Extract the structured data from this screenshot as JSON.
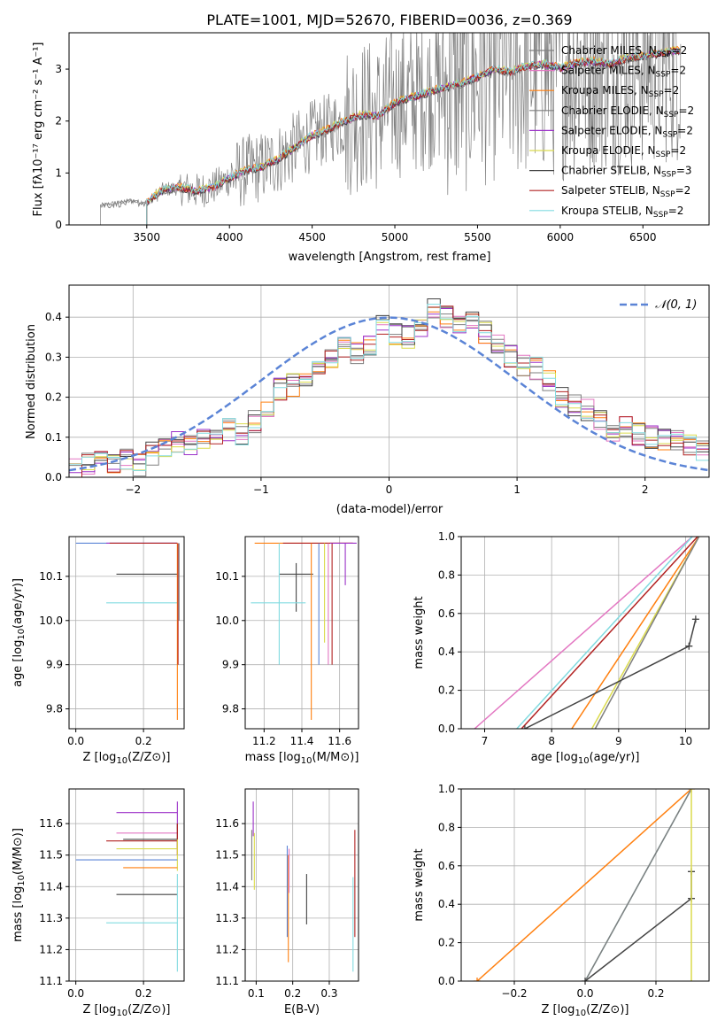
{
  "figure": {
    "title": "PLATE=1001, MJD=52670, FIBERID=0036, z=0.369"
  },
  "colors": {
    "chabrier_miles": "#808080",
    "salpeter_miles": "#e377c2",
    "kroupa_miles": "#ff7f0e",
    "chabrier_elodie": "#7f7f7f",
    "salpeter_elodie": "#9b30c8",
    "kroupa_elodie": "#dbdb4d",
    "chabrier_stelib": "#444444",
    "salpeter_stelib": "#b22222",
    "kroupa_stelib": "#82dbe0",
    "normal_curve": "#5b84d6",
    "data_spectrum": "#808080"
  },
  "chart_data": [
    {
      "id": "spectrum",
      "type": "line",
      "xlabel": "wavelength [Angstrom, rest frame]",
      "ylabel": "Flux [fλ10⁻¹⁷ erg cm⁻² s⁻¹ A⁻¹]",
      "xlim": [
        3030,
        6900
      ],
      "ylim": [
        0,
        3.7
      ],
      "xticks": [
        3500,
        4000,
        4500,
        5000,
        5500,
        6000,
        6500
      ],
      "yticks": [
        0,
        1,
        2,
        3
      ],
      "grid": false,
      "legend_position": "upper-right",
      "continuum": {
        "x": [
          3220,
          3300,
          3400,
          3500,
          3600,
          3700,
          3800,
          3900,
          4000,
          4100,
          4200,
          4300,
          4400,
          4500,
          4600,
          4700,
          4800,
          4900,
          5000,
          5100,
          5200,
          5300,
          5400,
          5500,
          5600,
          5700,
          5800,
          5900,
          6000,
          6100,
          6200,
          6300,
          6400,
          6500,
          6600,
          6700,
          6730
        ],
        "y": [
          0.38,
          0.42,
          0.45,
          0.44,
          0.68,
          0.72,
          0.65,
          0.72,
          0.9,
          1.05,
          1.12,
          1.28,
          1.5,
          1.72,
          1.85,
          2.0,
          2.12,
          2.1,
          2.35,
          2.45,
          2.55,
          2.65,
          2.72,
          2.85,
          3.0,
          2.95,
          3.05,
          3.1,
          3.02,
          3.12,
          3.15,
          3.1,
          3.2,
          3.25,
          3.3,
          3.35,
          3.35
        ]
      },
      "series": [
        {
          "name": "Chabrier MILES, N",
          "sub": "SSP",
          "suffix": "=2",
          "color_key": "chabrier_miles"
        },
        {
          "name": "Salpeter MILES, N",
          "sub": "SSP",
          "suffix": "=2",
          "color_key": "salpeter_miles"
        },
        {
          "name": "Kroupa MILES, N",
          "sub": "SSP",
          "suffix": "=2",
          "color_key": "kroupa_miles"
        },
        {
          "name": "Chabrier ELODIE, N",
          "sub": "SSP",
          "suffix": "=2",
          "color_key": "chabrier_elodie"
        },
        {
          "name": "Salpeter ELODIE, N",
          "sub": "SSP",
          "suffix": "=2",
          "color_key": "salpeter_elodie"
        },
        {
          "name": "Kroupa ELODIE, N",
          "sub": "SSP",
          "suffix": "=2",
          "color_key": "kroupa_elodie"
        },
        {
          "name": "Chabrier STELIB, N",
          "sub": "SSP",
          "suffix": "=3",
          "color_key": "chabrier_stelib"
        },
        {
          "name": "Salpeter STELIB, N",
          "sub": "SSP",
          "suffix": "=2",
          "color_key": "salpeter_stelib"
        },
        {
          "name": "Kroupa STELIB, N",
          "sub": "SSP",
          "suffix": "=2",
          "color_key": "kroupa_stelib"
        }
      ]
    },
    {
      "id": "residuals",
      "type": "line",
      "xlabel": "(data-model)/error",
      "ylabel": "Normed distribution",
      "xlim": [
        -2.5,
        2.5
      ],
      "ylim": [
        0,
        0.48
      ],
      "xticks": [
        -2,
        -1,
        0,
        1,
        2
      ],
      "yticks": [
        0.0,
        0.1,
        0.2,
        0.3,
        0.4
      ],
      "grid": true,
      "legend_position": "upper-right",
      "legend_label": "𝒩(0, 1)",
      "normal": {
        "mean": 0,
        "sigma": 1
      },
      "bin_edges": [
        -2.5,
        -2.4,
        -2.3,
        -2.2,
        -2.1,
        -2.0,
        -1.9,
        -1.8,
        -1.7,
        -1.6,
        -1.5,
        -1.4,
        -1.3,
        -1.2,
        -1.1,
        -1.0,
        -0.9,
        -0.8,
        -0.7,
        -0.6,
        -0.5,
        -0.4,
        -0.3,
        -0.2,
        -0.1,
        0.0,
        0.1,
        0.2,
        0.3,
        0.4,
        0.5,
        0.6,
        0.7,
        0.8,
        0.9,
        1.0,
        1.1,
        1.2,
        1.3,
        1.4,
        1.5,
        1.6,
        1.7,
        1.8,
        1.9,
        2.0,
        2.1,
        2.2,
        2.3,
        2.4,
        2.5
      ],
      "hist_base": [
        0.02,
        0.03,
        0.05,
        0.04,
        0.05,
        0.03,
        0.06,
        0.07,
        0.09,
        0.08,
        0.1,
        0.11,
        0.12,
        0.11,
        0.14,
        0.16,
        0.22,
        0.23,
        0.24,
        0.27,
        0.3,
        0.32,
        0.31,
        0.33,
        0.38,
        0.36,
        0.35,
        0.38,
        0.42,
        0.4,
        0.38,
        0.39,
        0.36,
        0.34,
        0.3,
        0.28,
        0.27,
        0.24,
        0.2,
        0.18,
        0.17,
        0.14,
        0.12,
        0.13,
        0.11,
        0.1,
        0.09,
        0.09,
        0.08,
        0.07
      ]
    },
    {
      "id": "age_vs_Z",
      "type": "errorbar",
      "xlabel_pre": "Z [log",
      "xlabel_sub": "10",
      "xlabel_post": "(Z/Z⊙)]",
      "ylabel_pre": "age  [log",
      "ylabel_sub": "10",
      "ylabel_post": "(age/yr)]",
      "xlim": [
        -0.02,
        0.32
      ],
      "ylim": [
        9.755,
        10.19
      ],
      "xticks": [
        0.0,
        0.2
      ],
      "xticklabels": [
        "0.0",
        "0.2"
      ],
      "yticks": [
        9.8,
        9.9,
        10.0,
        10.1
      ],
      "yticklabels": [
        "9.8",
        "9.9",
        "10.0",
        "10.1"
      ],
      "grid": true,
      "points": [
        {
          "x": 0.3,
          "y": 10.175,
          "xmin": 0.0,
          "xmax": 0.3,
          "ymin": 10.175,
          "ymax": 10.175,
          "color_key": "normal_curve"
        },
        {
          "x": 0.3,
          "y": 10.175,
          "xmin": 0.09,
          "xmax": 0.3,
          "ymin": 10.175,
          "ymax": 10.175,
          "color_key": "salpeter_elodie"
        },
        {
          "x": 0.3,
          "y": 10.175,
          "xmin": 0.1,
          "xmax": 0.3,
          "ymin": 10.175,
          "ymax": 10.175,
          "color_key": "salpeter_stelib"
        },
        {
          "x": 0.3,
          "y": 10.105,
          "xmin": 0.12,
          "xmax": 0.3,
          "ymin": 10.105,
          "ymax": 10.105,
          "color_key": "chabrier_stelib"
        },
        {
          "x": 0.3,
          "y": 10.04,
          "xmin": 0.09,
          "xmax": 0.3,
          "ymin": 10.04,
          "ymax": 10.04,
          "color_key": "kroupa_stelib"
        },
        {
          "x": 0.3,
          "y": 10.175,
          "xmin": 0.3,
          "xmax": 0.3,
          "ymin": 9.775,
          "ymax": 10.175,
          "color_key": "kroupa_miles"
        },
        {
          "x": 0.302,
          "y": 10.175,
          "xmin": 0.302,
          "xmax": 0.302,
          "ymin": 9.9,
          "ymax": 10.175,
          "color_key": "salpeter_stelib"
        },
        {
          "x": 0.305,
          "y": 10.175,
          "xmin": 0.305,
          "xmax": 0.305,
          "ymin": 10.0,
          "ymax": 10.175,
          "color_key": "chabrier_miles"
        }
      ]
    },
    {
      "id": "age_vs_mass",
      "type": "errorbar",
      "xlabel_pre": "mass [log",
      "xlabel_sub": "10",
      "xlabel_post": "(M/M⊙)]",
      "xlim": [
        11.1,
        11.7
      ],
      "ylim": [
        9.755,
        10.19
      ],
      "xticks": [
        11.2,
        11.4,
        11.6
      ],
      "xticklabels": [
        "11.2",
        "11.4",
        "11.6"
      ],
      "yticks": [
        9.8,
        9.9,
        10.0,
        10.1
      ],
      "yticklabels": [
        "9.8",
        "9.9",
        "10.0",
        "10.1"
      ],
      "grid": true,
      "points": [
        {
          "x": 11.45,
          "y": 10.175,
          "xmin": 11.15,
          "xmax": 11.67,
          "ymin": 10.175,
          "ymax": 10.175,
          "color_key": "kroupa_miles"
        },
        {
          "x": 11.55,
          "y": 10.175,
          "xmin": 11.3,
          "xmax": 11.67,
          "ymin": 10.175,
          "ymax": 10.175,
          "color_key": "salpeter_stelib"
        },
        {
          "x": 11.64,
          "y": 10.175,
          "xmin": 11.55,
          "xmax": 11.69,
          "ymin": 10.175,
          "ymax": 10.175,
          "color_key": "salpeter_elodie"
        },
        {
          "x": 11.37,
          "y": 10.105,
          "xmin": 11.28,
          "xmax": 11.46,
          "ymin": 10.02,
          "ymax": 10.13,
          "color_key": "chabrier_stelib"
        },
        {
          "x": 11.28,
          "y": 10.04,
          "xmin": 11.13,
          "xmax": 11.42,
          "ymin": 9.9,
          "ymax": 10.175,
          "color_key": "kroupa_stelib"
        },
        {
          "x": 11.45,
          "y": 10.175,
          "xmin": 11.45,
          "xmax": 11.45,
          "ymin": 9.775,
          "ymax": 10.175,
          "color_key": "kroupa_miles"
        },
        {
          "x": 11.49,
          "y": 10.175,
          "xmin": 11.49,
          "xmax": 11.49,
          "ymin": 9.9,
          "ymax": 10.175,
          "color_key": "normal_curve"
        },
        {
          "x": 11.52,
          "y": 10.175,
          "xmin": 11.52,
          "xmax": 11.52,
          "ymin": 9.95,
          "ymax": 10.175,
          "color_key": "kroupa_elodie"
        },
        {
          "x": 11.54,
          "y": 10.175,
          "xmin": 11.54,
          "xmax": 11.54,
          "ymin": 9.9,
          "ymax": 10.175,
          "color_key": "salpeter_miles"
        },
        {
          "x": 11.56,
          "y": 10.175,
          "xmin": 11.56,
          "xmax": 11.56,
          "ymin": 9.9,
          "ymax": 10.175,
          "color_key": "salpeter_stelib"
        },
        {
          "x": 11.63,
          "y": 10.175,
          "xmin": 11.63,
          "xmax": 11.63,
          "ymin": 10.08,
          "ymax": 10.175,
          "color_key": "salpeter_elodie"
        }
      ]
    },
    {
      "id": "weight_vs_age",
      "type": "line",
      "xlabel_pre": "age  [log",
      "xlabel_sub": "10",
      "xlabel_post": "(age/yr)]",
      "ylabel": "mass weight",
      "xlim": [
        6.65,
        10.35
      ],
      "ylim": [
        0,
        1
      ],
      "xticks": [
        7,
        8,
        9,
        10
      ],
      "xticklabels": [
        "7",
        "8",
        "9",
        "10"
      ],
      "yticks": [
        0.0,
        0.2,
        0.4,
        0.6,
        0.8,
        1.0
      ],
      "yticklabels": [
        "0.0",
        "0.2",
        "0.4",
        "0.6",
        "0.8",
        "1.0"
      ],
      "grid": true,
      "lines": [
        {
          "x": [
            6.85,
            10.1
          ],
          "y": [
            0,
            1
          ],
          "color_key": "salpeter_miles"
        },
        {
          "x": [
            7.48,
            10.1
          ],
          "y": [
            0,
            1
          ],
          "color_key": "kroupa_stelib"
        },
        {
          "x": [
            7.55,
            10.18
          ],
          "y": [
            0,
            1
          ],
          "color_key": "salpeter_stelib"
        },
        {
          "x": [
            8.3,
            10.2
          ],
          "y": [
            0,
            1
          ],
          "color_key": "kroupa_miles"
        },
        {
          "x": [
            8.6,
            10.2
          ],
          "y": [
            0,
            1
          ],
          "color_key": "kroupa_elodie"
        },
        {
          "x": [
            8.65,
            10.2
          ],
          "y": [
            0,
            1
          ],
          "color_key": "chabrier_elodie"
        },
        {
          "x": [
            7.6,
            10.05,
            10.15
          ],
          "y": [
            0,
            0.43,
            0.57
          ],
          "color_key": "chabrier_stelib",
          "markers": true
        }
      ]
    },
    {
      "id": "mass_vs_Z",
      "type": "errorbar",
      "xlabel_pre": "Z [log",
      "xlabel_sub": "10",
      "xlabel_post": "(Z/Z⊙)]",
      "ylabel_pre": "mass [log",
      "ylabel_sub": "10",
      "ylabel_post": "(M/M⊙)]",
      "xlim": [
        -0.02,
        0.32
      ],
      "ylim": [
        11.1,
        11.71
      ],
      "xticks": [
        0.0,
        0.2
      ],
      "xticklabels": [
        "0.0",
        "0.2"
      ],
      "yticks": [
        11.1,
        11.2,
        11.3,
        11.4,
        11.5,
        11.6
      ],
      "yticklabels": [
        "11.1",
        "11.2",
        "11.3",
        "11.4",
        "11.5",
        "11.6"
      ],
      "grid": true,
      "points": [
        {
          "x": 0.3,
          "y": 11.635,
          "xmin": 0.12,
          "xmax": 0.3,
          "ymin": 11.58,
          "ymax": 11.67,
          "color_key": "salpeter_elodie"
        },
        {
          "x": 0.3,
          "y": 11.57,
          "xmin": 0.12,
          "xmax": 0.3,
          "ymin": 11.5,
          "ymax": 11.6,
          "color_key": "salpeter_miles"
        },
        {
          "x": 0.3,
          "y": 11.55,
          "xmin": 0.14,
          "xmax": 0.3,
          "ymin": 11.52,
          "ymax": 11.6,
          "color_key": "chabrier_stelib"
        },
        {
          "x": 0.3,
          "y": 11.545,
          "xmin": 0.09,
          "xmax": 0.3,
          "ymin": 11.5,
          "ymax": 11.6,
          "color_key": "salpeter_stelib"
        },
        {
          "x": 0.3,
          "y": 11.52,
          "xmin": 0.12,
          "xmax": 0.3,
          "ymin": 11.45,
          "ymax": 11.55,
          "color_key": "kroupa_elodie"
        },
        {
          "x": 0.3,
          "y": 11.485,
          "xmin": 0.0,
          "xmax": 0.3,
          "ymin": 11.485,
          "ymax": 11.485,
          "color_key": "normal_curve"
        },
        {
          "x": 0.3,
          "y": 11.46,
          "xmin": 0.14,
          "xmax": 0.3,
          "ymin": 11.46,
          "ymax": 11.46,
          "color_key": "kroupa_miles"
        },
        {
          "x": 0.3,
          "y": 11.375,
          "xmin": 0.12,
          "xmax": 0.3,
          "ymin": 11.375,
          "ymax": 11.375,
          "color_key": "chabrier_stelib"
        },
        {
          "x": 0.3,
          "y": 11.285,
          "xmin": 0.09,
          "xmax": 0.3,
          "ymin": 11.13,
          "ymax": 11.44,
          "color_key": "kroupa_stelib"
        }
      ]
    },
    {
      "id": "mass_vs_ebv",
      "type": "errorbar",
      "xlabel": "E(B-V)",
      "xlim": [
        0.07,
        0.38
      ],
      "ylim": [
        11.1,
        11.71
      ],
      "xticks": [
        0.1,
        0.2,
        0.3
      ],
      "xticklabels": [
        "0.1",
        "0.2",
        "0.3"
      ],
      "yticks": [
        11.1,
        11.2,
        11.3,
        11.4,
        11.5,
        11.6
      ],
      "yticklabels": [
        "11.1",
        "11.2",
        "11.3",
        "11.4",
        "11.5",
        "11.6"
      ],
      "grid": true,
      "points": [
        {
          "x": 0.088,
          "y": 11.5,
          "xmin": 0.088,
          "xmax": 0.088,
          "ymin": 11.42,
          "ymax": 11.58,
          "color_key": "chabrier_miles"
        },
        {
          "x": 0.092,
          "y": 11.62,
          "xmin": 0.092,
          "xmax": 0.092,
          "ymin": 11.56,
          "ymax": 11.67,
          "color_key": "salpeter_elodie"
        },
        {
          "x": 0.095,
          "y": 11.48,
          "xmin": 0.095,
          "xmax": 0.095,
          "ymin": 11.39,
          "ymax": 11.57,
          "color_key": "kroupa_elodie"
        },
        {
          "x": 0.185,
          "y": 11.38,
          "xmin": 0.185,
          "xmax": 0.185,
          "ymin": 11.24,
          "ymax": 11.53,
          "color_key": "normal_curve"
        },
        {
          "x": 0.188,
          "y": 11.33,
          "xmin": 0.188,
          "xmax": 0.188,
          "ymin": 11.16,
          "ymax": 11.5,
          "color_key": "kroupa_miles"
        },
        {
          "x": 0.19,
          "y": 11.45,
          "xmin": 0.19,
          "xmax": 0.19,
          "ymin": 11.38,
          "ymax": 11.52,
          "color_key": "salpeter_miles"
        },
        {
          "x": 0.238,
          "y": 11.36,
          "xmin": 0.238,
          "xmax": 0.238,
          "ymin": 11.28,
          "ymax": 11.44,
          "color_key": "chabrier_stelib"
        },
        {
          "x": 0.365,
          "y": 11.28,
          "xmin": 0.365,
          "xmax": 0.365,
          "ymin": 11.13,
          "ymax": 11.43,
          "color_key": "kroupa_stelib"
        },
        {
          "x": 0.37,
          "y": 11.41,
          "xmin": 0.37,
          "xmax": 0.37,
          "ymin": 11.24,
          "ymax": 11.58,
          "color_key": "salpeter_stelib"
        }
      ]
    },
    {
      "id": "weight_vs_Z",
      "type": "line",
      "xlabel_pre": "Z [log",
      "xlabel_sub": "10",
      "xlabel_post": "(Z/Z⊙)]",
      "ylabel": "mass weight",
      "xlim": [
        -0.35,
        0.35
      ],
      "ylim": [
        0,
        1
      ],
      "xticks": [
        -0.2,
        0.0,
        0.2
      ],
      "xticklabels": [
        "−0.2",
        "0.0",
        "0.2"
      ],
      "yticks": [
        0.0,
        0.2,
        0.4,
        0.6,
        0.8,
        1.0
      ],
      "yticklabels": [
        "0.0",
        "0.2",
        "0.4",
        "0.6",
        "0.8",
        "1.0"
      ],
      "grid": true,
      "lines": [
        {
          "x": [
            -0.305,
            0.3
          ],
          "y": [
            0,
            1
          ],
          "color_key": "kroupa_miles",
          "markers": true
        },
        {
          "x": [
            0.0,
            0.3
          ],
          "y": [
            0,
            1
          ],
          "color_key": "kroupa_stelib"
        },
        {
          "x": [
            0.0,
            0.3
          ],
          "y": [
            0,
            1
          ],
          "color_key": "chabrier_elodie"
        },
        {
          "x": [
            0.0,
            0.3,
            0.3
          ],
          "y": [
            0,
            0.43,
            0.57
          ],
          "color_key": "chabrier_stelib",
          "markers": true
        },
        {
          "x": [
            0.3,
            0.3
          ],
          "y": [
            0,
            1
          ],
          "color_key": "kroupa_elodie"
        }
      ]
    }
  ]
}
